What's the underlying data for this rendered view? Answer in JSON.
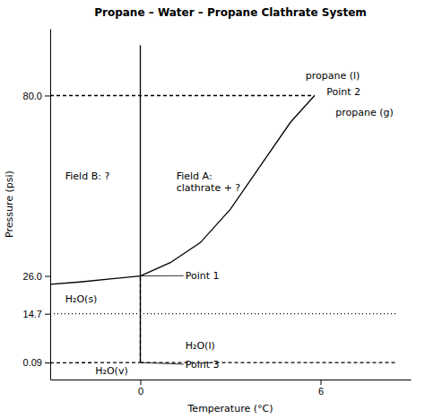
{
  "chart_data": {
    "type": "line",
    "title": "Propane – Water – Propane Clathrate System",
    "x_label": "Temperature (°C)",
    "y_label": "Pressure (psi)",
    "xlim": [
      -3,
      9
    ],
    "ylim": [
      -5,
      100
    ],
    "xticks": [
      0,
      6
    ],
    "yticks": [
      0.09,
      14.7,
      {
        "value": 26.0,
        "label": "26.0"
      },
      {
        "value": 80.0,
        "label": "80.0"
      }
    ],
    "grid": false,
    "series": [
      {
        "x": [
          -3,
          -2,
          -1,
          0
        ],
        "values": [
          23.5,
          24.2,
          25.1,
          26.0
        ],
        "color": "black",
        "line_style": "solid"
      },
      {
        "x": [
          0,
          1,
          2,
          3,
          4,
          5,
          5.8
        ],
        "values": [
          26.0,
          30.0,
          36.0,
          46.0,
          59.0,
          72.0,
          80.0
        ],
        "color": "black",
        "line_style": "solid"
      },
      {
        "x": [
          0,
          0
        ],
        "values": [
          0.09,
          95
        ],
        "color": "black",
        "line_style": "solid"
      },
      {
        "x": [
          0,
          8.5
        ],
        "values": [
          0.09,
          0.09
        ],
        "color": "black",
        "line_style": "dashed"
      },
      {
        "x": [
          -3,
          0
        ],
        "values": [
          0.0,
          0.09
        ],
        "color": "black",
        "line_style": "dashed"
      },
      {
        "x": [
          -3,
          5.8
        ],
        "values": [
          80.0,
          80.0
        ],
        "color": "black",
        "line_style": "dashed"
      },
      {
        "x": [
          -3,
          8.5
        ],
        "values": [
          14.7,
          14.7
        ],
        "color": "black",
        "line_style": "dotted"
      },
      {
        "x": [
          0,
          0
        ],
        "values": [
          0.09,
          26.0
        ],
        "color": "black",
        "line_style": "dashed"
      }
    ],
    "annotations": [
      {
        "text": "Point 1",
        "x": 1.5,
        "y": 25.0,
        "xy": [
          0,
          26.0
        ]
      },
      {
        "text": "Point 2",
        "x": 6.2,
        "y": 80.0
      },
      {
        "text": "Point 3",
        "x": 1.5,
        "y": -1.5,
        "xy": [
          0,
          0.09
        ]
      },
      {
        "text": "propane (l)",
        "x": 5.5,
        "y": 85
      },
      {
        "text": "propane (g)",
        "x": 6.5,
        "y": 74
      },
      {
        "text": "Field A:\nclathrate + ?",
        "x": 1.2,
        "y": 55
      },
      {
        "text": "Field B: ?",
        "x": -2.5,
        "y": 55
      },
      {
        "text": "H₂O(s)",
        "x": -2.5,
        "y": 18
      },
      {
        "text": "H₂O(l)",
        "x": 1.5,
        "y": 4
      },
      {
        "text": "H₂O(v)",
        "x": -1.5,
        "y": -3.5
      }
    ]
  }
}
